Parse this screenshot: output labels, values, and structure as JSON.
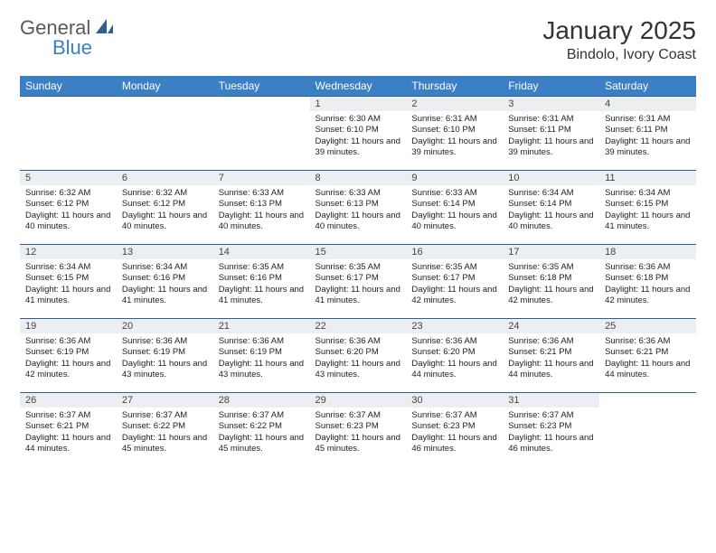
{
  "brand": {
    "part1": "General",
    "part2": "Blue",
    "icon_color": "#2f5f8f"
  },
  "title": "January 2025",
  "location": "Bindolo, Ivory Coast",
  "colors": {
    "header_bg": "#3b7fc4",
    "header_text": "#ffffff",
    "daynum_bg": "#eceff1",
    "border": "#2f5f8f",
    "text": "#222222"
  },
  "weekdays": [
    "Sunday",
    "Monday",
    "Tuesday",
    "Wednesday",
    "Thursday",
    "Friday",
    "Saturday"
  ],
  "weeks": [
    [
      null,
      null,
      null,
      {
        "n": "1",
        "sr": "6:30 AM",
        "ss": "6:10 PM",
        "dl": "11 hours and 39 minutes."
      },
      {
        "n": "2",
        "sr": "6:31 AM",
        "ss": "6:10 PM",
        "dl": "11 hours and 39 minutes."
      },
      {
        "n": "3",
        "sr": "6:31 AM",
        "ss": "6:11 PM",
        "dl": "11 hours and 39 minutes."
      },
      {
        "n": "4",
        "sr": "6:31 AM",
        "ss": "6:11 PM",
        "dl": "11 hours and 39 minutes."
      }
    ],
    [
      {
        "n": "5",
        "sr": "6:32 AM",
        "ss": "6:12 PM",
        "dl": "11 hours and 40 minutes."
      },
      {
        "n": "6",
        "sr": "6:32 AM",
        "ss": "6:12 PM",
        "dl": "11 hours and 40 minutes."
      },
      {
        "n": "7",
        "sr": "6:33 AM",
        "ss": "6:13 PM",
        "dl": "11 hours and 40 minutes."
      },
      {
        "n": "8",
        "sr": "6:33 AM",
        "ss": "6:13 PM",
        "dl": "11 hours and 40 minutes."
      },
      {
        "n": "9",
        "sr": "6:33 AM",
        "ss": "6:14 PM",
        "dl": "11 hours and 40 minutes."
      },
      {
        "n": "10",
        "sr": "6:34 AM",
        "ss": "6:14 PM",
        "dl": "11 hours and 40 minutes."
      },
      {
        "n": "11",
        "sr": "6:34 AM",
        "ss": "6:15 PM",
        "dl": "11 hours and 41 minutes."
      }
    ],
    [
      {
        "n": "12",
        "sr": "6:34 AM",
        "ss": "6:15 PM",
        "dl": "11 hours and 41 minutes."
      },
      {
        "n": "13",
        "sr": "6:34 AM",
        "ss": "6:16 PM",
        "dl": "11 hours and 41 minutes."
      },
      {
        "n": "14",
        "sr": "6:35 AM",
        "ss": "6:16 PM",
        "dl": "11 hours and 41 minutes."
      },
      {
        "n": "15",
        "sr": "6:35 AM",
        "ss": "6:17 PM",
        "dl": "11 hours and 41 minutes."
      },
      {
        "n": "16",
        "sr": "6:35 AM",
        "ss": "6:17 PM",
        "dl": "11 hours and 42 minutes."
      },
      {
        "n": "17",
        "sr": "6:35 AM",
        "ss": "6:18 PM",
        "dl": "11 hours and 42 minutes."
      },
      {
        "n": "18",
        "sr": "6:36 AM",
        "ss": "6:18 PM",
        "dl": "11 hours and 42 minutes."
      }
    ],
    [
      {
        "n": "19",
        "sr": "6:36 AM",
        "ss": "6:19 PM",
        "dl": "11 hours and 42 minutes."
      },
      {
        "n": "20",
        "sr": "6:36 AM",
        "ss": "6:19 PM",
        "dl": "11 hours and 43 minutes."
      },
      {
        "n": "21",
        "sr": "6:36 AM",
        "ss": "6:19 PM",
        "dl": "11 hours and 43 minutes."
      },
      {
        "n": "22",
        "sr": "6:36 AM",
        "ss": "6:20 PM",
        "dl": "11 hours and 43 minutes."
      },
      {
        "n": "23",
        "sr": "6:36 AM",
        "ss": "6:20 PM",
        "dl": "11 hours and 44 minutes."
      },
      {
        "n": "24",
        "sr": "6:36 AM",
        "ss": "6:21 PM",
        "dl": "11 hours and 44 minutes."
      },
      {
        "n": "25",
        "sr": "6:36 AM",
        "ss": "6:21 PM",
        "dl": "11 hours and 44 minutes."
      }
    ],
    [
      {
        "n": "26",
        "sr": "6:37 AM",
        "ss": "6:21 PM",
        "dl": "11 hours and 44 minutes."
      },
      {
        "n": "27",
        "sr": "6:37 AM",
        "ss": "6:22 PM",
        "dl": "11 hours and 45 minutes."
      },
      {
        "n": "28",
        "sr": "6:37 AM",
        "ss": "6:22 PM",
        "dl": "11 hours and 45 minutes."
      },
      {
        "n": "29",
        "sr": "6:37 AM",
        "ss": "6:23 PM",
        "dl": "11 hours and 45 minutes."
      },
      {
        "n": "30",
        "sr": "6:37 AM",
        "ss": "6:23 PM",
        "dl": "11 hours and 46 minutes."
      },
      {
        "n": "31",
        "sr": "6:37 AM",
        "ss": "6:23 PM",
        "dl": "11 hours and 46 minutes."
      },
      null
    ]
  ],
  "labels": {
    "sunrise": "Sunrise:",
    "sunset": "Sunset:",
    "daylight": "Daylight:"
  }
}
